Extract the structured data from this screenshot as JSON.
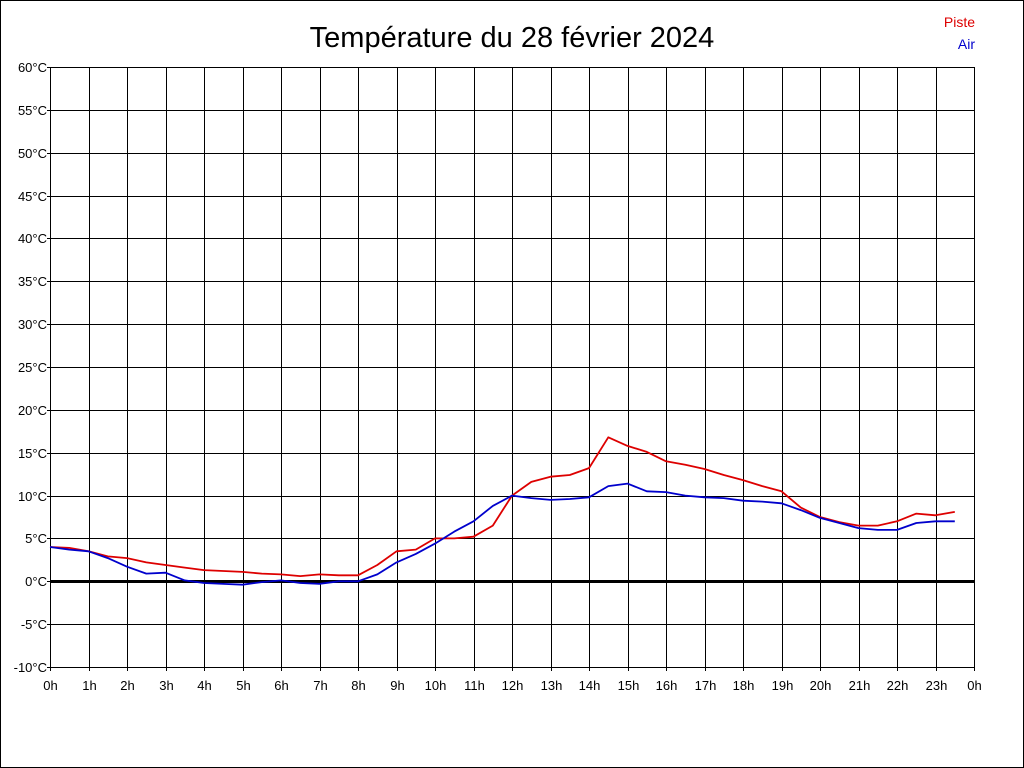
{
  "chart_data": {
    "type": "line",
    "title": "Température du 28 février 2024",
    "xlabel": "",
    "ylabel": "",
    "ylim": [
      -10,
      60
    ],
    "xlim": [
      0,
      24
    ],
    "y_ticks": [
      60,
      55,
      50,
      45,
      40,
      35,
      30,
      25,
      20,
      15,
      10,
      5,
      0,
      -5,
      -10
    ],
    "y_tick_labels": [
      "60°C",
      "55°C",
      "50°C",
      "45°C",
      "40°C",
      "35°C",
      "30°C",
      "25°C",
      "20°C",
      "15°C",
      "10°C",
      "5°C",
      "0°C",
      "-5°C",
      "-10°C"
    ],
    "x_ticks": [
      0,
      1,
      2,
      3,
      4,
      5,
      6,
      7,
      8,
      9,
      10,
      11,
      12,
      13,
      14,
      15,
      16,
      17,
      18,
      19,
      20,
      21,
      22,
      23,
      24
    ],
    "x_tick_labels": [
      "0h",
      "1h",
      "2h",
      "3h",
      "4h",
      "5h",
      "6h",
      "7h",
      "8h",
      "9h",
      "10h",
      "11h",
      "12h",
      "13h",
      "14h",
      "15h",
      "16h",
      "17h",
      "18h",
      "19h",
      "20h",
      "21h",
      "22h",
      "23h",
      "0h"
    ],
    "grid": true,
    "legend_position": "top-right",
    "series": [
      {
        "name": "Piste",
        "color": "#dd0000",
        "x": [
          0,
          0.5,
          1,
          1.5,
          2,
          2.5,
          3,
          3.5,
          4,
          4.5,
          5,
          5.5,
          6,
          6.5,
          7,
          7.5,
          8,
          8.5,
          9,
          9.5,
          10,
          10.5,
          11,
          11.5,
          12,
          12.5,
          13,
          13.5,
          14,
          14.5,
          15,
          15.5,
          16,
          16.5,
          17,
          17.5,
          18,
          18.5,
          19,
          19.5,
          20,
          20.5,
          21,
          21.5,
          22,
          22.5,
          23,
          23.5
        ],
        "values": [
          4.0,
          3.9,
          3.5,
          2.9,
          2.7,
          2.2,
          1.9,
          1.6,
          1.3,
          1.2,
          1.1,
          0.9,
          0.8,
          0.6,
          0.8,
          0.7,
          0.7,
          1.9,
          3.5,
          3.7,
          5.0,
          5.0,
          5.2,
          6.5,
          10.0,
          11.6,
          12.2,
          12.4,
          13.2,
          16.8,
          15.8,
          15.1,
          14.0,
          13.6,
          13.1,
          12.4,
          11.8,
          11.1,
          10.5,
          8.6,
          7.5,
          6.9,
          6.5,
          6.5,
          7.0,
          7.9,
          7.7,
          8.1
        ]
      },
      {
        "name": "Air",
        "color": "#0000cc",
        "x": [
          0,
          0.5,
          1,
          1.5,
          2,
          2.5,
          3,
          3.5,
          4,
          4.5,
          5,
          5.5,
          6,
          6.5,
          7,
          7.5,
          8,
          8.5,
          9,
          9.5,
          10,
          10.5,
          11,
          11.5,
          12,
          12.5,
          13,
          13.5,
          14,
          14.5,
          15,
          15.5,
          16,
          16.5,
          17,
          17.5,
          18,
          18.5,
          19,
          19.5,
          20,
          20.5,
          21,
          21.5,
          22,
          22.5,
          23,
          23.5
        ],
        "values": [
          4.0,
          3.7,
          3.5,
          2.7,
          1.7,
          0.9,
          1.0,
          0.1,
          -0.2,
          -0.3,
          -0.4,
          -0.1,
          0.1,
          -0.2,
          -0.3,
          0.0,
          0.0,
          0.8,
          2.2,
          3.2,
          4.4,
          5.8,
          7.0,
          8.8,
          10.0,
          9.7,
          9.5,
          9.6,
          9.8,
          11.1,
          11.4,
          10.5,
          10.4,
          10.0,
          9.8,
          9.7,
          9.4,
          9.3,
          9.1,
          8.3,
          7.4,
          6.8,
          6.2,
          6.0,
          6.0,
          6.8,
          7.0,
          7.0
        ]
      }
    ]
  }
}
